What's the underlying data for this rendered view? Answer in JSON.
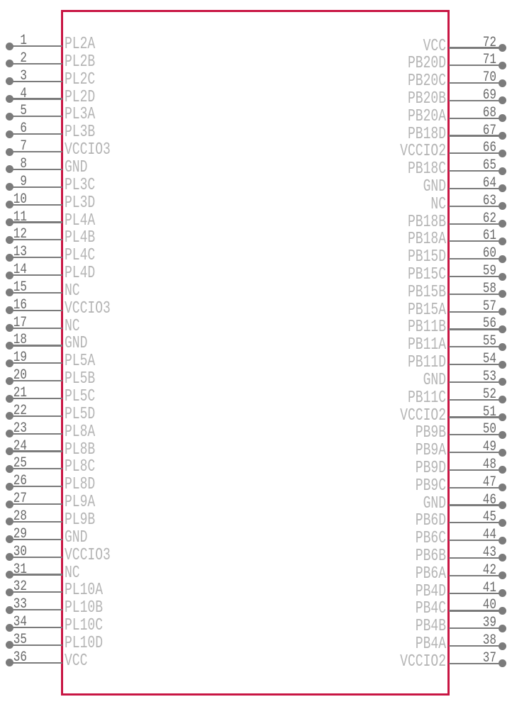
{
  "diagram": {
    "type": "ic-pin-diagram",
    "colors": {
      "background": "#ffffff",
      "outline": "#c81543",
      "pin_line": "#7b7b7b",
      "pin_dot": "#7b7b7b",
      "pin_number": "#6a6a6a",
      "pin_label": "#b5b5b5"
    },
    "left_pins": [
      {
        "number": "1",
        "label": "PL2A"
      },
      {
        "number": "2",
        "label": "PL2B"
      },
      {
        "number": "3",
        "label": "PL2C"
      },
      {
        "number": "4",
        "label": "PL2D"
      },
      {
        "number": "5",
        "label": "PL3A"
      },
      {
        "number": "6",
        "label": "PL3B"
      },
      {
        "number": "7",
        "label": "VCCIO3"
      },
      {
        "number": "8",
        "label": "GND"
      },
      {
        "number": "9",
        "label": "PL3C"
      },
      {
        "number": "10",
        "label": "PL3D"
      },
      {
        "number": "11",
        "label": "PL4A"
      },
      {
        "number": "12",
        "label": "PL4B"
      },
      {
        "number": "13",
        "label": "PL4C"
      },
      {
        "number": "14",
        "label": "PL4D"
      },
      {
        "number": "15",
        "label": "NC"
      },
      {
        "number": "16",
        "label": "VCCIO3"
      },
      {
        "number": "17",
        "label": "NC"
      },
      {
        "number": "18",
        "label": "GND"
      },
      {
        "number": "19",
        "label": "PL5A"
      },
      {
        "number": "20",
        "label": "PL5B"
      },
      {
        "number": "21",
        "label": "PL5C"
      },
      {
        "number": "22",
        "label": "PL5D"
      },
      {
        "number": "23",
        "label": "PL8A"
      },
      {
        "number": "24",
        "label": "PL8B"
      },
      {
        "number": "25",
        "label": "PL8C"
      },
      {
        "number": "26",
        "label": "PL8D"
      },
      {
        "number": "27",
        "label": "PL9A"
      },
      {
        "number": "28",
        "label": "PL9B"
      },
      {
        "number": "29",
        "label": "GND"
      },
      {
        "number": "30",
        "label": "VCCIO3"
      },
      {
        "number": "31",
        "label": "NC"
      },
      {
        "number": "32",
        "label": "PL10A"
      },
      {
        "number": "33",
        "label": "PL10B"
      },
      {
        "number": "34",
        "label": "PL10C"
      },
      {
        "number": "35",
        "label": "PL10D"
      },
      {
        "number": "36",
        "label": "VCC"
      }
    ],
    "right_pins": [
      {
        "number": "72",
        "label": "VCC"
      },
      {
        "number": "71",
        "label": "PB20D"
      },
      {
        "number": "70",
        "label": "PB20C"
      },
      {
        "number": "69",
        "label": "PB20B"
      },
      {
        "number": "68",
        "label": "PB20A"
      },
      {
        "number": "67",
        "label": "PB18D"
      },
      {
        "number": "66",
        "label": "VCCIO2"
      },
      {
        "number": "65",
        "label": "PB18C"
      },
      {
        "number": "64",
        "label": "GND"
      },
      {
        "number": "63",
        "label": "NC"
      },
      {
        "number": "62",
        "label": "PB18B"
      },
      {
        "number": "61",
        "label": "PB18A"
      },
      {
        "number": "60",
        "label": "PB15D"
      },
      {
        "number": "59",
        "label": "PB15C"
      },
      {
        "number": "58",
        "label": "PB15B"
      },
      {
        "number": "57",
        "label": "PB15A"
      },
      {
        "number": "56",
        "label": "PB11B"
      },
      {
        "number": "55",
        "label": "PB11A"
      },
      {
        "number": "54",
        "label": "PB11D"
      },
      {
        "number": "53",
        "label": "GND"
      },
      {
        "number": "52",
        "label": "PB11C"
      },
      {
        "number": "51",
        "label": "VCCIO2"
      },
      {
        "number": "50",
        "label": "PB9B"
      },
      {
        "number": "49",
        "label": "PB9A"
      },
      {
        "number": "48",
        "label": "PB9D"
      },
      {
        "number": "47",
        "label": "PB9C"
      },
      {
        "number": "46",
        "label": "GND"
      },
      {
        "number": "45",
        "label": "PB6D"
      },
      {
        "number": "44",
        "label": "PB6C"
      },
      {
        "number": "43",
        "label": "PB6B"
      },
      {
        "number": "42",
        "label": "PB6A"
      },
      {
        "number": "41",
        "label": "PB4D"
      },
      {
        "number": "40",
        "label": "PB4C"
      },
      {
        "number": "39",
        "label": "PB4B"
      },
      {
        "number": "38",
        "label": "PB4A"
      },
      {
        "number": "37",
        "label": "VCCIO2"
      }
    ]
  }
}
